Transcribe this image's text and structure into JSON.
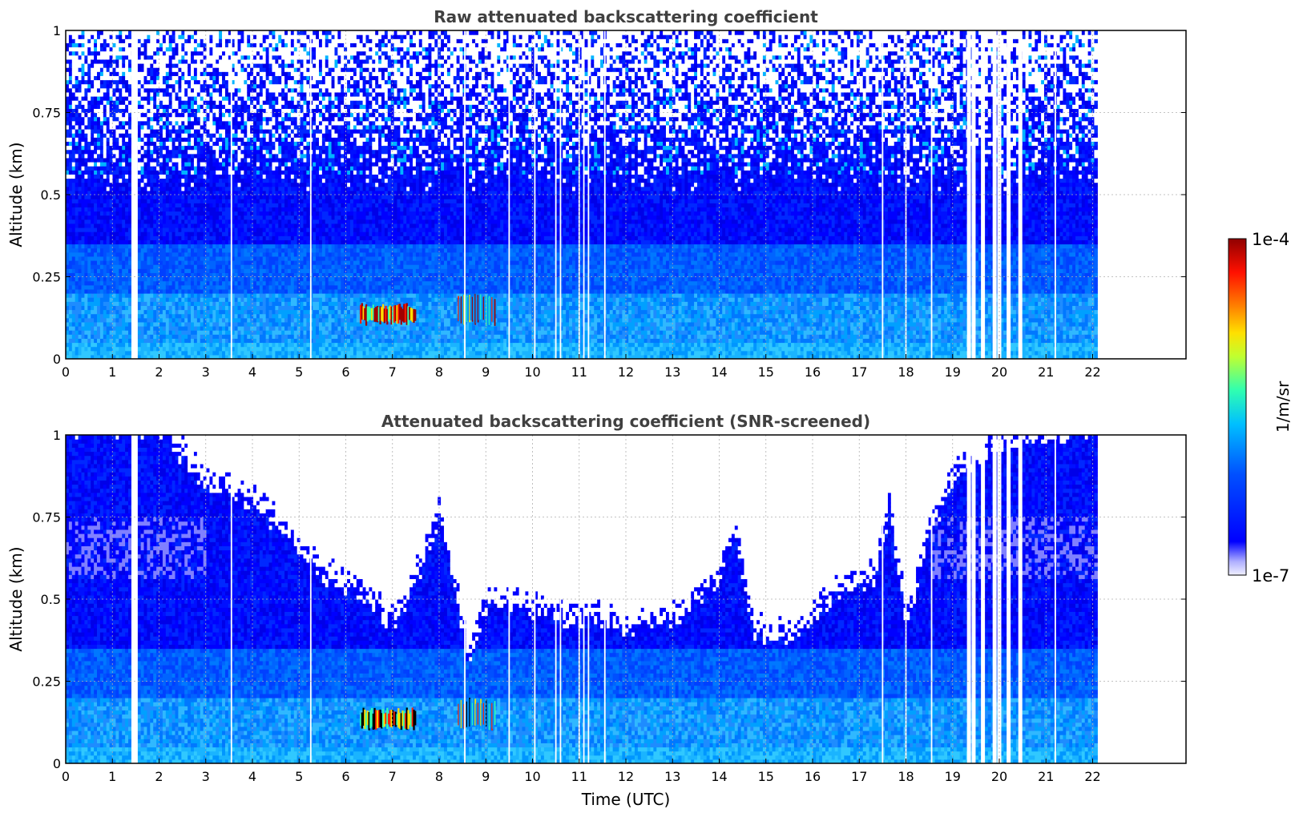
{
  "chart_data": [
    {
      "type": "heatmap",
      "title": "Raw attenuated backscattering coefficient",
      "xlabel": "",
      "ylabel": "Altitude (km)",
      "xlim": [
        0,
        24
      ],
      "ylim": [
        0,
        1
      ],
      "xticks": [
        0,
        1,
        2,
        3,
        4,
        5,
        6,
        7,
        8,
        9,
        10,
        11,
        12,
        13,
        14,
        15,
        16,
        17,
        18,
        19,
        20,
        21,
        22
      ],
      "xtick_labels": [
        "0",
        "1",
        "2",
        "3",
        "4",
        "5",
        "6",
        "7",
        "8",
        "9",
        "10",
        "11",
        "12",
        "13",
        "14",
        "15",
        "16",
        "17",
        "18",
        "19",
        "20",
        "21",
        "22"
      ],
      "yticks": [
        0,
        0.25,
        0.5,
        0.75,
        1
      ],
      "ytick_labels": [
        "0",
        "0.25",
        "0.5",
        "0.75",
        "1"
      ],
      "grid": true,
      "data_extent_hours": [
        0,
        22.1
      ],
      "cloud_layer": {
        "time_range": [
          6.3,
          7.5
        ],
        "altitude_range": [
          0.1,
          0.17
        ]
      },
      "cloud_layer_2": {
        "time_range": [
          8.4,
          9.2
        ],
        "altitude_range": [
          0.1,
          0.2
        ]
      },
      "missing_times": [
        1.45,
        1.5,
        3.55,
        5.25,
        8.55,
        9.5,
        10.05,
        10.5,
        10.6,
        11.0,
        11.1,
        11.2,
        11.55,
        17.5,
        18.0,
        18.55,
        19.35,
        19.45,
        19.65,
        19.9,
        20.0,
        20.2,
        20.45,
        21.2
      ]
    },
    {
      "type": "heatmap",
      "title": "Attenuated backscattering coefficient (SNR-screened)",
      "xlabel": "Time (UTC)",
      "ylabel": "Altitude (km)",
      "xlim": [
        0,
        24
      ],
      "ylim": [
        0,
        1
      ],
      "xticks": [
        0,
        1,
        2,
        3,
        4,
        5,
        6,
        7,
        8,
        9,
        10,
        11,
        12,
        13,
        14,
        15,
        16,
        17,
        18,
        19,
        20,
        21,
        22
      ],
      "xtick_labels": [
        "0",
        "1",
        "2",
        "3",
        "4",
        "5",
        "6",
        "7",
        "8",
        "9",
        "10",
        "11",
        "12",
        "13",
        "14",
        "15",
        "16",
        "17",
        "18",
        "19",
        "20",
        "21",
        "22"
      ],
      "yticks": [
        0,
        0.25,
        0.5,
        0.75,
        1
      ],
      "ytick_labels": [
        "0",
        "0.25",
        "0.5",
        "0.75",
        "1"
      ],
      "grid": true,
      "data_extent_hours": [
        0,
        22.1
      ],
      "snr_top_km": [
        [
          0,
          1
        ],
        [
          2,
          1
        ],
        [
          3,
          0.82
        ],
        [
          4,
          0.78
        ],
        [
          5,
          0.62
        ],
        [
          5.6,
          0.55
        ],
        [
          6.3,
          0.5
        ],
        [
          7,
          0.4
        ],
        [
          7.5,
          0.55
        ],
        [
          8,
          0.75
        ],
        [
          8.6,
          0.3
        ],
        [
          9,
          0.48
        ],
        [
          10,
          0.45
        ],
        [
          11,
          0.42
        ],
        [
          12,
          0.4
        ],
        [
          13,
          0.42
        ],
        [
          13.5,
          0.48
        ],
        [
          14,
          0.55
        ],
        [
          14.3,
          0.7
        ],
        [
          14.7,
          0.38
        ],
        [
          15.4,
          0.36
        ],
        [
          16,
          0.42
        ],
        [
          16.5,
          0.5
        ],
        [
          17.3,
          0.55
        ],
        [
          17.6,
          0.75
        ],
        [
          18,
          0.4
        ],
        [
          18.5,
          0.7
        ],
        [
          19,
          0.85
        ],
        [
          20,
          0.95
        ],
        [
          22.1,
          1
        ]
      ],
      "cloud_layer": {
        "time_range": [
          6.3,
          7.5
        ],
        "altitude_range": [
          0.1,
          0.17
        ]
      },
      "cloud_layer_2": {
        "time_range": [
          8.4,
          9.2
        ],
        "altitude_range": [
          0.1,
          0.2
        ]
      },
      "missing_times": [
        1.45,
        1.5,
        3.55,
        5.25,
        8.55,
        9.5,
        10.05,
        10.5,
        10.6,
        11.0,
        11.1,
        11.2,
        11.55,
        17.5,
        18.0,
        18.55,
        19.35,
        19.45,
        19.65,
        19.9,
        20.0,
        20.2,
        20.45,
        21.2
      ]
    }
  ],
  "colorbar": {
    "label": "1/m/sr",
    "max_label": "1e-4",
    "min_label": "1e-7",
    "colors": [
      "#e8e8ff",
      "#0000ff",
      "#0064ff",
      "#00c8ff",
      "#40ffb0",
      "#c0ff40",
      "#ffe000",
      "#ff8000",
      "#ff2000",
      "#a00000"
    ]
  }
}
